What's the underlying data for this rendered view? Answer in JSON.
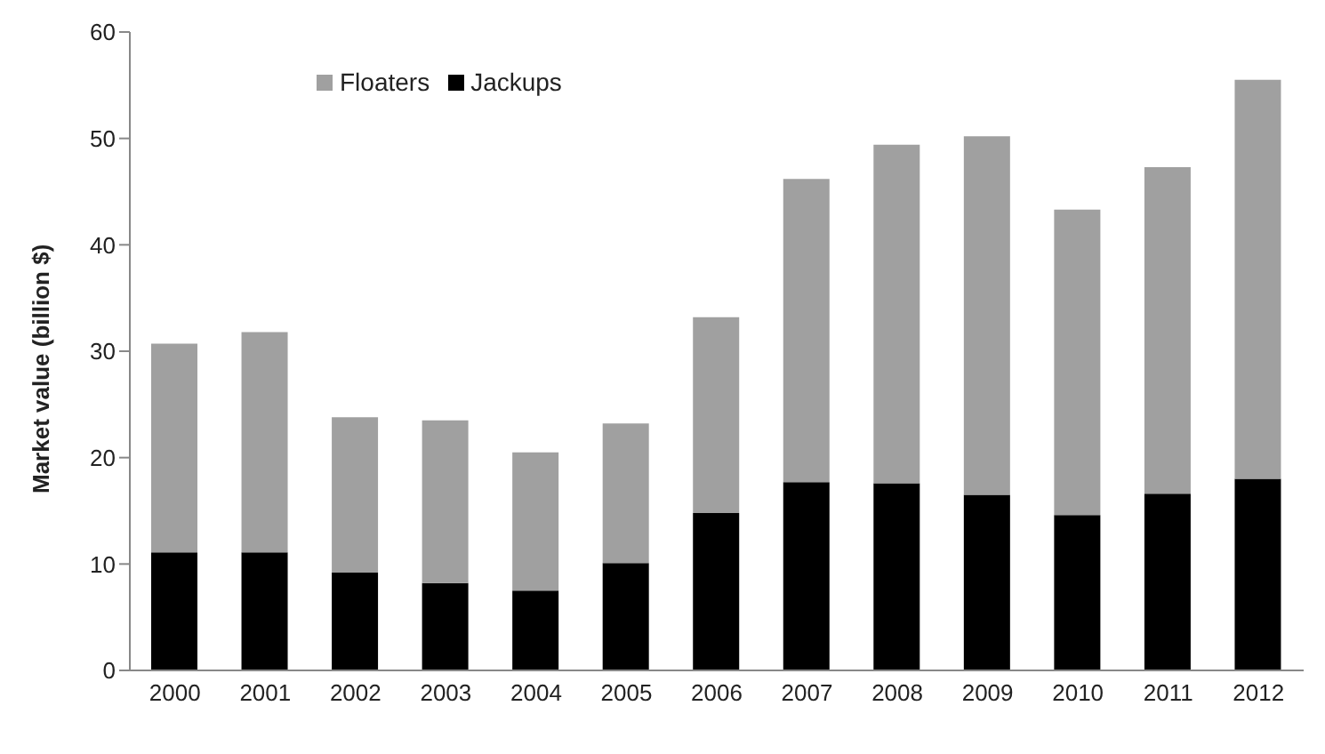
{
  "chart_data": {
    "type": "bar",
    "ylabel": "Market value (billion $)",
    "categories": [
      "2000",
      "2001",
      "2002",
      "2003",
      "2004",
      "2005",
      "2006",
      "2007",
      "2008",
      "2009",
      "2010",
      "2011",
      "2012"
    ],
    "series": [
      {
        "name": "Jackups",
        "color": "#000000",
        "values": [
          11.1,
          11.1,
          9.2,
          8.2,
          7.5,
          10.1,
          14.8,
          17.7,
          17.6,
          16.5,
          14.6,
          16.6,
          18.0
        ]
      },
      {
        "name": "Floaters",
        "color": "#a0a0a0",
        "values": [
          19.6,
          20.7,
          14.6,
          15.3,
          13.0,
          13.1,
          18.4,
          28.5,
          31.8,
          33.7,
          28.7,
          30.7,
          37.5
        ]
      }
    ],
    "stacked": true,
    "ylim": [
      0,
      60
    ],
    "yticks": [
      0,
      10,
      20,
      30,
      40,
      50,
      60
    ],
    "grid": false,
    "legend": "top left"
  }
}
